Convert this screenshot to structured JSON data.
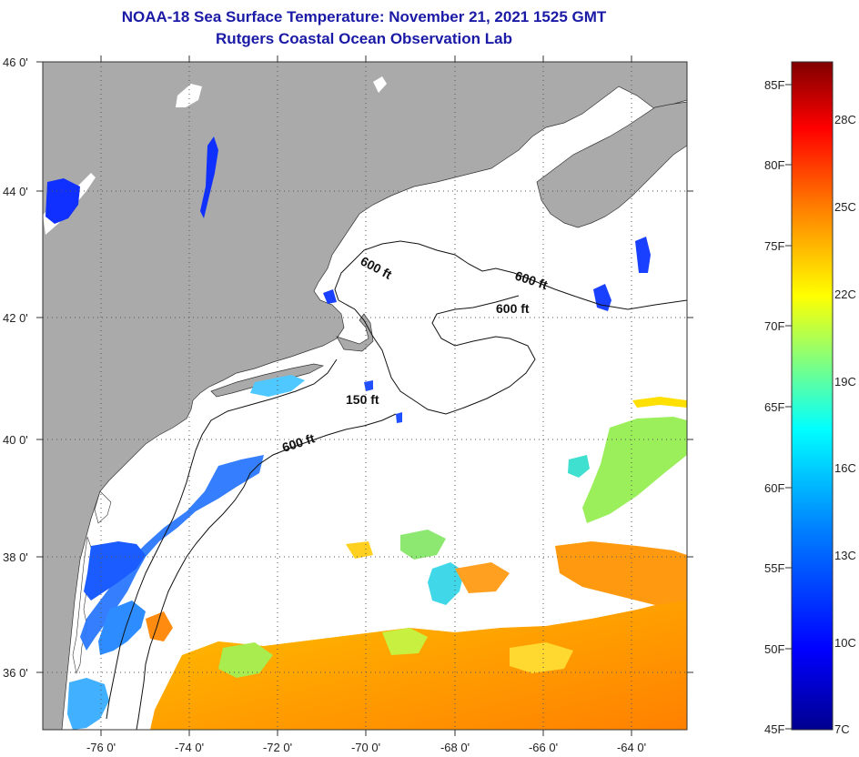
{
  "header": {
    "title": "NOAA-18 Sea Surface Temperature:  November 21, 2021 1525 GMT",
    "subtitle": "Rutgers Coastal Ocean Observation Lab"
  },
  "map": {
    "lat_ticks": [
      "46 0'",
      "44 0'",
      "42 0'",
      "40 0'",
      "38 0'",
      "36 0'"
    ],
    "lon_ticks": [
      "-76 0'",
      "-74 0'",
      "-72 0'",
      "-70 0'",
      "-68 0'",
      "-66 0'",
      "-64 0'"
    ],
    "lat_range": [
      35,
      46
    ],
    "lon_range": [
      -77,
      -62.5
    ],
    "contour_labels": [
      "600 ft",
      "600 ft",
      "600 ft",
      "150 ft",
      "600 ft"
    ],
    "colors": {
      "land": "#aaaaaa",
      "ocean_cloud": "#ffffff"
    }
  },
  "colorbar": {
    "fahrenheit": [
      "85F",
      "80F",
      "75F",
      "70F",
      "65F",
      "60F",
      "55F",
      "50F",
      "45F"
    ],
    "celsius": [
      "28C",
      "25C",
      "22C",
      "19C",
      "16C",
      "13C",
      "10C",
      "7C"
    ],
    "min_c": 7,
    "max_c": 30
  }
}
